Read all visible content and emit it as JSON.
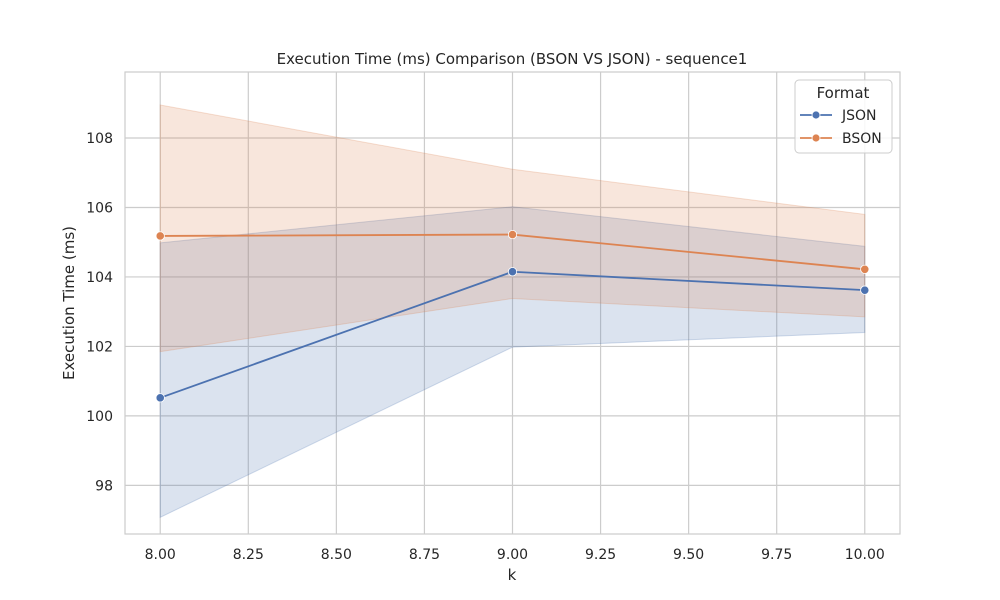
{
  "chart_data": {
    "type": "line",
    "title": "Execution Time (ms) Comparison (BSON VS JSON) - sequence1",
    "xlabel": "k",
    "ylabel": "Execution Time (ms)",
    "xlim": [
      7.9,
      10.1
    ],
    "ylim": [
      96.6,
      109.9
    ],
    "xticks": [
      8.0,
      8.25,
      8.5,
      8.75,
      9.0,
      9.25,
      9.5,
      9.75,
      10.0
    ],
    "xtick_labels": [
      "8.00",
      "8.25",
      "8.50",
      "8.75",
      "9.00",
      "9.25",
      "9.50",
      "9.75",
      "10.00"
    ],
    "yticks": [
      98,
      100,
      102,
      104,
      106,
      108
    ],
    "ytick_labels": [
      "98",
      "100",
      "102",
      "104",
      "106",
      "108"
    ],
    "grid": true,
    "legend": {
      "title": "Format",
      "placement": "top-right"
    },
    "series": [
      {
        "name": "JSON",
        "color": "#4c72b0",
        "x": [
          8,
          9,
          10
        ],
        "y": [
          100.52,
          104.15,
          103.62
        ],
        "ci_low": [
          97.08,
          101.98,
          102.4
        ],
        "ci_high": [
          104.98,
          106.02,
          104.88
        ]
      },
      {
        "name": "BSON",
        "color": "#dd8452",
        "x": [
          8,
          9,
          10
        ],
        "y": [
          105.18,
          105.22,
          104.22
        ],
        "ci_low": [
          101.85,
          103.38,
          102.85
        ],
        "ci_high": [
          108.95,
          107.1,
          105.8
        ]
      }
    ]
  }
}
